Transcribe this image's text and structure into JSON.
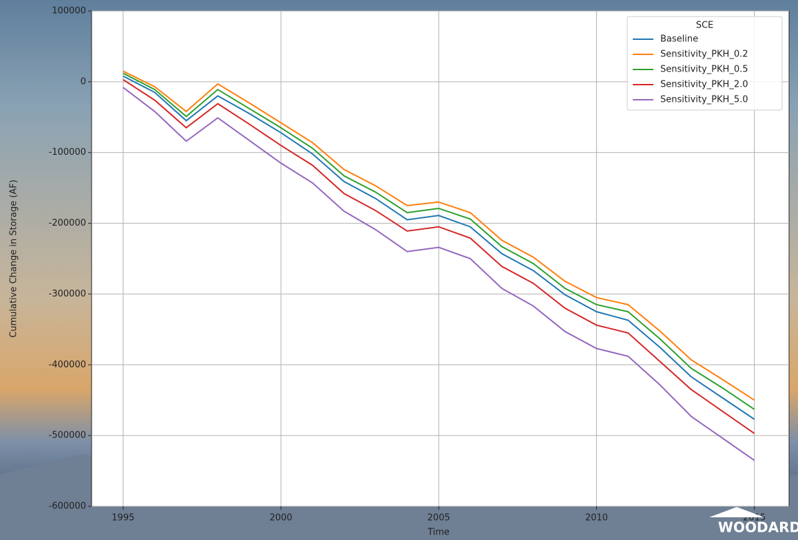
{
  "branding": "WOODARD",
  "chart_data": {
    "type": "line",
    "x_label": "Time",
    "y_label": "Cumulative Change in Storage (AF)",
    "legend_title": "SCE",
    "legend": "upper right",
    "grid": true,
    "x": [
      1995,
      1996,
      1997,
      1998,
      1999,
      2000,
      2001,
      2002,
      2003,
      2004,
      2005,
      2006,
      2007,
      2008,
      2009,
      2010,
      2011,
      2012,
      2013,
      2014,
      2015
    ],
    "xlim": [
      1994,
      2016.1
    ],
    "xticks": [
      1995,
      2000,
      2005,
      2010,
      2015
    ],
    "ylim": [
      -600000,
      100000
    ],
    "yticks": [
      -600000,
      -500000,
      -400000,
      -300000,
      -200000,
      -100000,
      0,
      100000
    ],
    "series": [
      {
        "name": "Baseline",
        "color": "#1f77b4",
        "values": [
          8000,
          -15000,
          -55000,
          -20000,
          -45000,
          -72000,
          -102000,
          -141000,
          -165000,
          -195000,
          -189000,
          -205000,
          -243000,
          -267000,
          -301000,
          -325000,
          -337000,
          -375000,
          -417000,
          -447000,
          -477000
        ]
      },
      {
        "name": "Sensitivity_PKH_0.2",
        "color": "#ff7f0e",
        "values": [
          15000,
          -7000,
          -42000,
          -3000,
          -30000,
          -58000,
          -86000,
          -124000,
          -147000,
          -175000,
          -170000,
          -185000,
          -224000,
          -248000,
          -282000,
          -305000,
          -315000,
          -352000,
          -393000,
          -421000,
          -450000
        ]
      },
      {
        "name": "Sensitivity_PKH_0.5",
        "color": "#2ca02c",
        "values": [
          12000,
          -11000,
          -49000,
          -11000,
          -38000,
          -65000,
          -94000,
          -133000,
          -156000,
          -185000,
          -179000,
          -194000,
          -233000,
          -257000,
          -292000,
          -315000,
          -325000,
          -363000,
          -405000,
          -433000,
          -463000
        ]
      },
      {
        "name": "Sensitivity_PKH_2.0",
        "color": "#d62728",
        "values": [
          3000,
          -26000,
          -65000,
          -31000,
          -60000,
          -90000,
          -118000,
          -158000,
          -182000,
          -211000,
          -205000,
          -221000,
          -261000,
          -285000,
          -320000,
          -344000,
          -355000,
          -395000,
          -435000,
          -466000,
          -497000
        ]
      },
      {
        "name": "Sensitivity_PKH_5.0",
        "color": "#9467bd",
        "values": [
          -8000,
          -42000,
          -84000,
          -51000,
          -83000,
          -115000,
          -143000,
          -183000,
          -209000,
          -240000,
          -234000,
          -250000,
          -292000,
          -317000,
          -353000,
          -377000,
          -388000,
          -428000,
          -473000,
          -504000,
          -535000
        ]
      }
    ]
  }
}
